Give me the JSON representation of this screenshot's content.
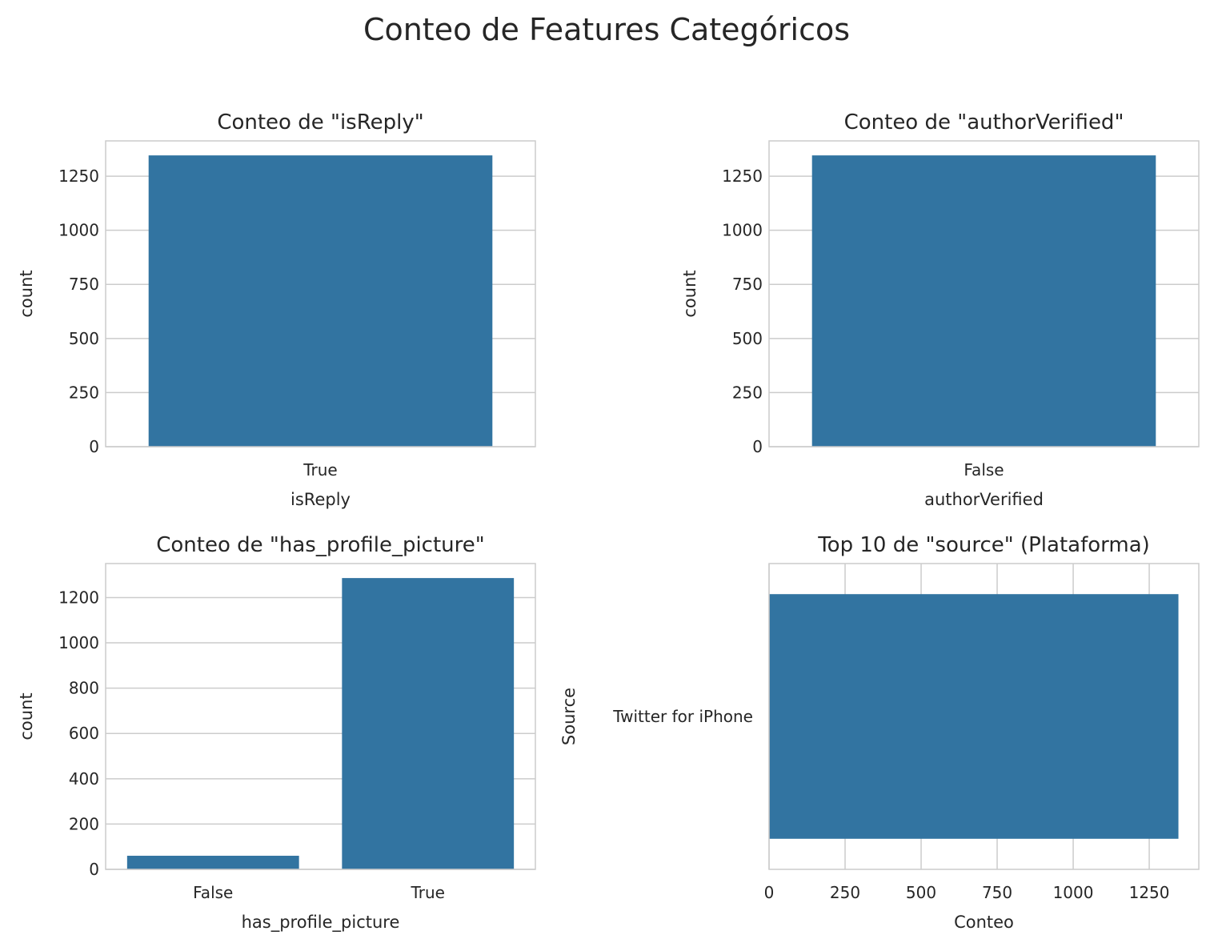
{
  "figure": {
    "title": "Conteo de Features Categóricos",
    "bar_color": "#3274a1"
  },
  "chart_data": [
    {
      "type": "bar",
      "orientation": "vertical",
      "title": "Conteo de \"isReply\"",
      "xlabel": "isReply",
      "ylabel": "count",
      "categories": [
        "True"
      ],
      "values": [
        1346
      ],
      "ylim": [
        0,
        1413
      ],
      "yticks": [
        0,
        250,
        500,
        750,
        1000,
        1250
      ],
      "grid": true
    },
    {
      "type": "bar",
      "orientation": "vertical",
      "title": "Conteo de \"authorVerified\"",
      "xlabel": "authorVerified",
      "ylabel": "count",
      "categories": [
        "False"
      ],
      "values": [
        1346
      ],
      "ylim": [
        0,
        1413
      ],
      "yticks": [
        0,
        250,
        500,
        750,
        1000,
        1250
      ],
      "grid": true
    },
    {
      "type": "bar",
      "orientation": "vertical",
      "title": "Conteo de \"has_profile_picture\"",
      "xlabel": "has_profile_picture",
      "ylabel": "count",
      "categories": [
        "False",
        "True"
      ],
      "values": [
        60,
        1286
      ],
      "ylim": [
        0,
        1350
      ],
      "yticks": [
        0,
        200,
        400,
        600,
        800,
        1000,
        1200
      ],
      "grid": true
    },
    {
      "type": "bar",
      "orientation": "horizontal",
      "title": "Top 10 de \"source\" (Plataforma)",
      "xlabel": "Conteo",
      "ylabel": "Source",
      "categories": [
        "Twitter for iPhone"
      ],
      "values": [
        1346
      ],
      "xlim": [
        0,
        1413
      ],
      "xticks": [
        0,
        250,
        500,
        750,
        1000,
        1250
      ],
      "grid": true
    }
  ]
}
